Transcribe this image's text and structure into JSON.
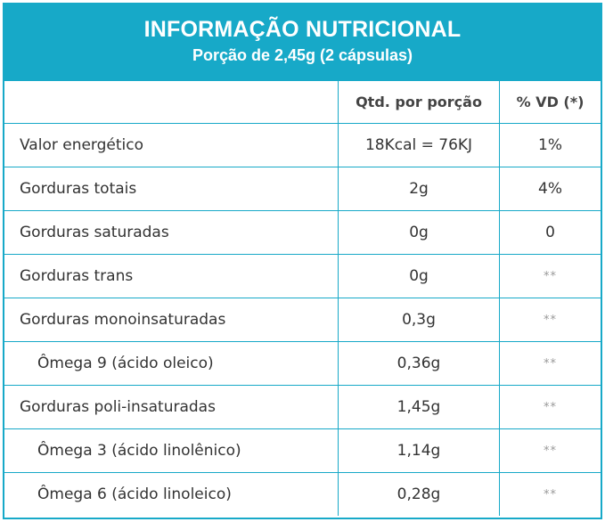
{
  "header": {
    "title": "INFORMAÇÃO NUTRICIONAL",
    "subtitle": "Porção de 2,45g (2 cápsulas)"
  },
  "columns": [
    "",
    "Qtd. por porção",
    "% VD (*)"
  ],
  "rows": [
    {
      "name": "Valor energético",
      "qty": "18Kcal = 76KJ",
      "vd": "1%"
    },
    {
      "name": "Gorduras totais",
      "qty": "2g",
      "vd": "4%"
    },
    {
      "name": "Gorduras saturadas",
      "qty": "0g",
      "vd": "0"
    },
    {
      "name": "Gorduras trans",
      "qty": "0g",
      "vd": "**"
    },
    {
      "name": "Gorduras monoinsaturadas",
      "qty": "0,3g",
      "vd": "**"
    },
    {
      "name": "Ômega 9 (ácido oleico)",
      "qty": "0,36g",
      "vd": "**"
    },
    {
      "name": "Gorduras poli-insaturadas",
      "qty": "1,45g",
      "vd": "**"
    },
    {
      "name": "Ômega 3 (ácido linolênico)",
      "qty": "1,14g",
      "vd": "**"
    },
    {
      "name": "Ômega 6 (ácido linoleico)",
      "qty": "0,28g",
      "vd": "**"
    }
  ],
  "colors": {
    "accent": "#17a9c8",
    "text": "#333333"
  }
}
